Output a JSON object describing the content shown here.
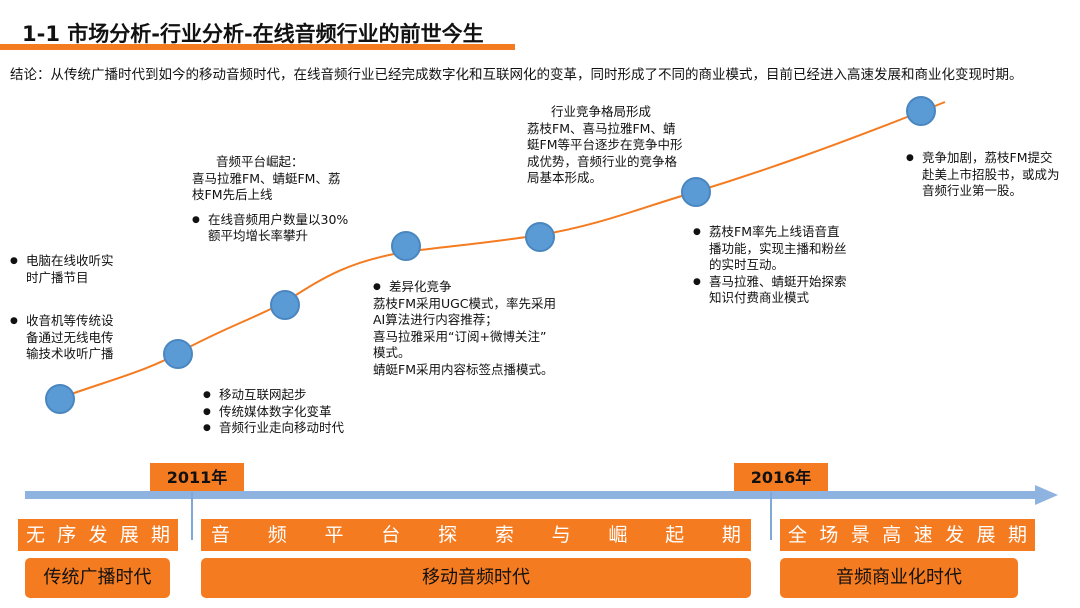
{
  "title": "1-1 市场分析-行业分析-在线音频行业的前世今生",
  "conclusion": "结论：从传统广播时代到如今的移动音频时代，在线音频行业已经完成数字化和互联网化的变革，同时形成了不同的商业模式，目前已经进入高速发展和商业化变现时期。",
  "notes": {
    "n1": [
      "电脑在线收听实",
      "时广播节目"
    ],
    "n2": [
      "收音机等传统设",
      "备通过无线电传",
      "输技术收听广播"
    ],
    "n3": [
      "移动互联网起步",
      "传统媒体数字化变革",
      "音频行业走向移动时代"
    ],
    "n4a": [
      "音频平台崛起：",
      "喜马拉雅FM、蜻蜓FM、荔",
      "枝FM先后上线"
    ],
    "n4b": [
      "在线音频用户数量以30%",
      "额平均增长率攀升"
    ],
    "n5": [
      "差异化竞争",
      "荔枝FM采用UGC模式，率先采用",
      "AI算法进行内容推荐；",
      "喜马拉雅采用“订阅+微博关注”",
      "模式。",
      "蜻蜓FM采用内容标签点播模式。"
    ],
    "n6": [
      "行业竞争格局形成",
      "荔枝FM、喜马拉雅FM、蜻",
      "蜓FM等平台逐步在竞争中形",
      "成优势，音频行业的竞争格",
      "局基本形成。"
    ],
    "n7a": [
      "荔枝FM率先上线语音直",
      "播功能，实现主播和粉丝",
      "的实时互动。"
    ],
    "n7b": [
      "喜马拉雅、蜻蜓开始探索",
      "知识付费商业模式"
    ],
    "n8": [
      "竞争加剧，荔枝FM提交",
      "赴美上市招股书，或成为",
      "音频行业第一股。"
    ]
  },
  "years": {
    "y2011": "2011年",
    "y2016": "2016年"
  },
  "phases": {
    "p1": [
      "无",
      "序",
      "发",
      "展",
      "期"
    ],
    "p2": [
      "音",
      "频",
      "平",
      "台",
      "探",
      "索",
      "与",
      "崛",
      "起",
      "期"
    ],
    "p3": [
      "全",
      "场",
      "景",
      "高",
      "速",
      "发",
      "展",
      "期"
    ]
  },
  "eras": {
    "e1": "传统广播时代",
    "e2": "移动音频时代",
    "e3": "音频商业化时代"
  },
  "colors": {
    "accent": "#f47b20",
    "dot": "#5b9bd5",
    "axis": "#8fb3e0"
  }
}
